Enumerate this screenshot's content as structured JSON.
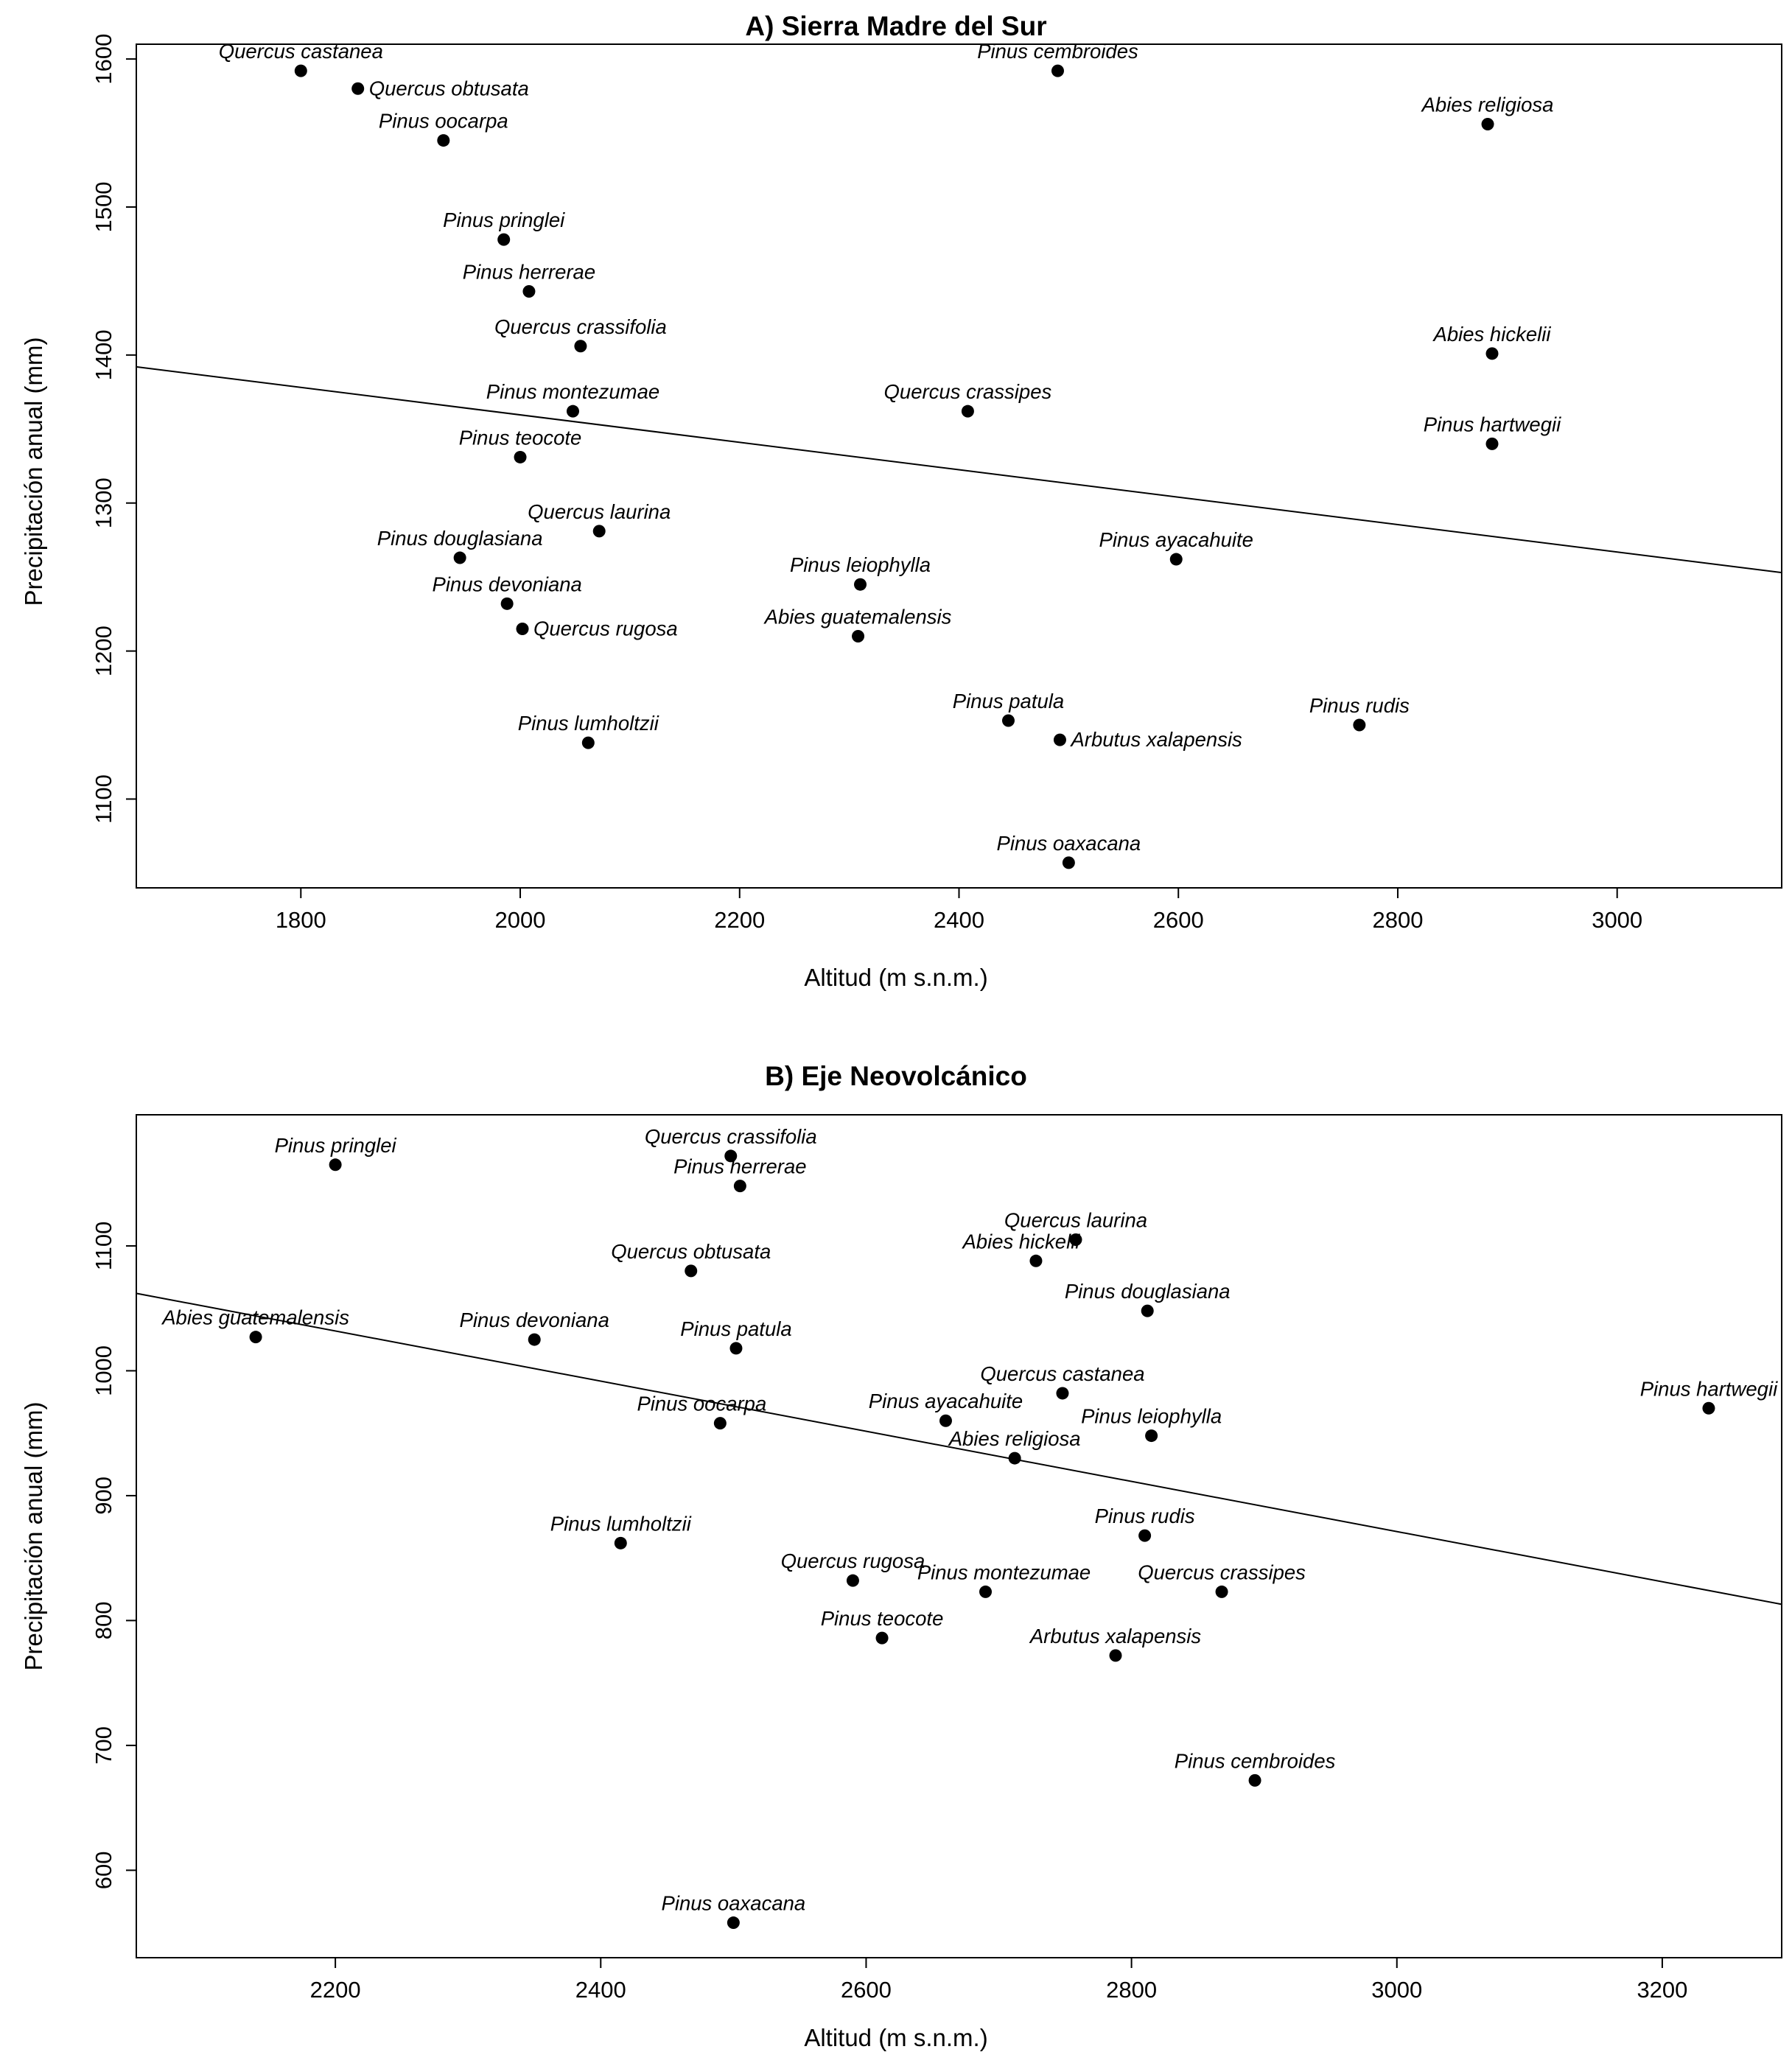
{
  "page": {
    "background": "#ffffff",
    "foreground": "#000000"
  },
  "chart_data": [
    {
      "type": "scatter",
      "title": "A) Sierra Madre del Sur",
      "xlabel": "Altitud (m s.n.m.)",
      "ylabel": "Precipitación anual (mm)",
      "xlim": [
        1650,
        3150
      ],
      "ylim": [
        1040,
        1610
      ],
      "xticks": [
        1800,
        2000,
        2200,
        2400,
        2600,
        2800,
        3000
      ],
      "yticks": [
        1100,
        1200,
        1300,
        1400,
        1500,
        1600
      ],
      "grid": false,
      "legend_position": "none",
      "point_color": "#000000",
      "trend_line": {
        "x1": 1650,
        "y1": 1392,
        "x2": 3150,
        "y2": 1253
      },
      "points": [
        {
          "label": "Quercus castanea",
          "x": 1800,
          "y": 1592,
          "anchor": "above"
        },
        {
          "label": "Quercus obtusata",
          "x": 1852,
          "y": 1580,
          "anchor": "right"
        },
        {
          "label": "Pinus oocarpa",
          "x": 1930,
          "y": 1545,
          "anchor": "above"
        },
        {
          "label": "Pinus pringlei",
          "x": 1985,
          "y": 1478,
          "anchor": "above"
        },
        {
          "label": "Pinus herrerae",
          "x": 2008,
          "y": 1443,
          "anchor": "above"
        },
        {
          "label": "Quercus crassifolia",
          "x": 2055,
          "y": 1406,
          "anchor": "above"
        },
        {
          "label": "Pinus montezumae",
          "x": 2048,
          "y": 1362,
          "anchor": "above"
        },
        {
          "label": "Pinus teocote",
          "x": 2000,
          "y": 1331,
          "anchor": "above"
        },
        {
          "label": "Quercus laurina",
          "x": 2072,
          "y": 1281,
          "anchor": "above"
        },
        {
          "label": "Pinus douglasiana",
          "x": 1945,
          "y": 1263,
          "anchor": "above"
        },
        {
          "label": "Pinus devoniana",
          "x": 1988,
          "y": 1232,
          "anchor": "above"
        },
        {
          "label": "Quercus rugosa",
          "x": 2002,
          "y": 1215,
          "anchor": "right"
        },
        {
          "label": "Pinus lumholtzii",
          "x": 2062,
          "y": 1138,
          "anchor": "above"
        },
        {
          "label": "Pinus leiophylla",
          "x": 2310,
          "y": 1245,
          "anchor": "above"
        },
        {
          "label": "Abies guatemalensis",
          "x": 2308,
          "y": 1210,
          "anchor": "above"
        },
        {
          "label": "Pinus patula",
          "x": 2445,
          "y": 1153,
          "anchor": "above"
        },
        {
          "label": "Arbutus xalapensis",
          "x": 2492,
          "y": 1140,
          "anchor": "right"
        },
        {
          "label": "Pinus oaxacana",
          "x": 2500,
          "y": 1057,
          "anchor": "above"
        },
        {
          "label": "Quercus crassipes",
          "x": 2408,
          "y": 1362,
          "anchor": "above"
        },
        {
          "label": "Pinus cembroides",
          "x": 2490,
          "y": 1592,
          "anchor": "above"
        },
        {
          "label": "Pinus ayacahuite",
          "x": 2598,
          "y": 1262,
          "anchor": "above"
        },
        {
          "label": "Pinus rudis",
          "x": 2765,
          "y": 1150,
          "anchor": "above"
        },
        {
          "label": "Abies religiosa",
          "x": 2882,
          "y": 1556,
          "anchor": "above"
        },
        {
          "label": "Abies hickelii",
          "x": 2886,
          "y": 1401,
          "anchor": "above"
        },
        {
          "label": "Pinus hartwegii",
          "x": 2886,
          "y": 1340,
          "anchor": "above"
        }
      ]
    },
    {
      "type": "scatter",
      "title": "B) Eje Neovolcánico",
      "xlabel": "Altitud (m s.n.m.)",
      "ylabel": "Precipitación anual (mm)",
      "xlim": [
        2050,
        3290
      ],
      "ylim": [
        530,
        1205
      ],
      "xticks": [
        2200,
        2400,
        2600,
        2800,
        3000,
        3200
      ],
      "yticks": [
        600,
        700,
        800,
        900,
        1000,
        1100
      ],
      "grid": false,
      "legend_position": "none",
      "point_color": "#000000",
      "trend_line": {
        "x1": 2050,
        "y1": 1062,
        "x2": 3290,
        "y2": 813
      },
      "points": [
        {
          "label": "Pinus pringlei",
          "x": 2200,
          "y": 1165,
          "anchor": "above"
        },
        {
          "label": "Abies guatemalensis",
          "x": 2140,
          "y": 1027,
          "anchor": "above"
        },
        {
          "label": "Pinus devoniana",
          "x": 2350,
          "y": 1025,
          "anchor": "above"
        },
        {
          "label": "Quercus obtusata",
          "x": 2468,
          "y": 1080,
          "anchor": "above"
        },
        {
          "label": "Quercus crassifolia",
          "x": 2498,
          "y": 1172,
          "anchor": "above"
        },
        {
          "label": "Pinus herrerae",
          "x": 2505,
          "y": 1148,
          "anchor": "above"
        },
        {
          "label": "Pinus patula",
          "x": 2502,
          "y": 1018,
          "anchor": "above"
        },
        {
          "label": "Pinus oocarpa",
          "x": 2490,
          "y": 958,
          "anchor": "above",
          "dx": -25
        },
        {
          "label": "Pinus lumholtzii",
          "x": 2415,
          "y": 862,
          "anchor": "above"
        },
        {
          "label": "Quercus rugosa",
          "x": 2590,
          "y": 832,
          "anchor": "above"
        },
        {
          "label": "Pinus teocote",
          "x": 2612,
          "y": 786,
          "anchor": "above"
        },
        {
          "label": "Pinus oaxacana",
          "x": 2500,
          "y": 558,
          "anchor": "above"
        },
        {
          "label": "Quercus laurina",
          "x": 2758,
          "y": 1105,
          "anchor": "above"
        },
        {
          "label": "Abies hickelii",
          "x": 2728,
          "y": 1088,
          "anchor": "above",
          "dx": -20
        },
        {
          "label": "Pinus douglasiana",
          "x": 2812,
          "y": 1048,
          "anchor": "above"
        },
        {
          "label": "Quercus castanea",
          "x": 2748,
          "y": 982,
          "anchor": "above"
        },
        {
          "label": "Pinus ayacahuite",
          "x": 2660,
          "y": 960,
          "anchor": "above"
        },
        {
          "label": "Abies religiosa",
          "x": 2712,
          "y": 930,
          "anchor": "above"
        },
        {
          "label": "Pinus leiophylla",
          "x": 2815,
          "y": 948,
          "anchor": "above"
        },
        {
          "label": "Pinus rudis",
          "x": 2810,
          "y": 868,
          "anchor": "above"
        },
        {
          "label": "Pinus montezumae",
          "x": 2690,
          "y": 823,
          "anchor": "above",
          "dx": 25
        },
        {
          "label": "Quercus crassipes",
          "x": 2868,
          "y": 823,
          "anchor": "above"
        },
        {
          "label": "Arbutus xalapensis",
          "x": 2788,
          "y": 772,
          "anchor": "above"
        },
        {
          "label": "Pinus cembroides",
          "x": 2893,
          "y": 672,
          "anchor": "above"
        },
        {
          "label": "Pinus hartwegii",
          "x": 3235,
          "y": 970,
          "anchor": "above"
        }
      ]
    }
  ]
}
